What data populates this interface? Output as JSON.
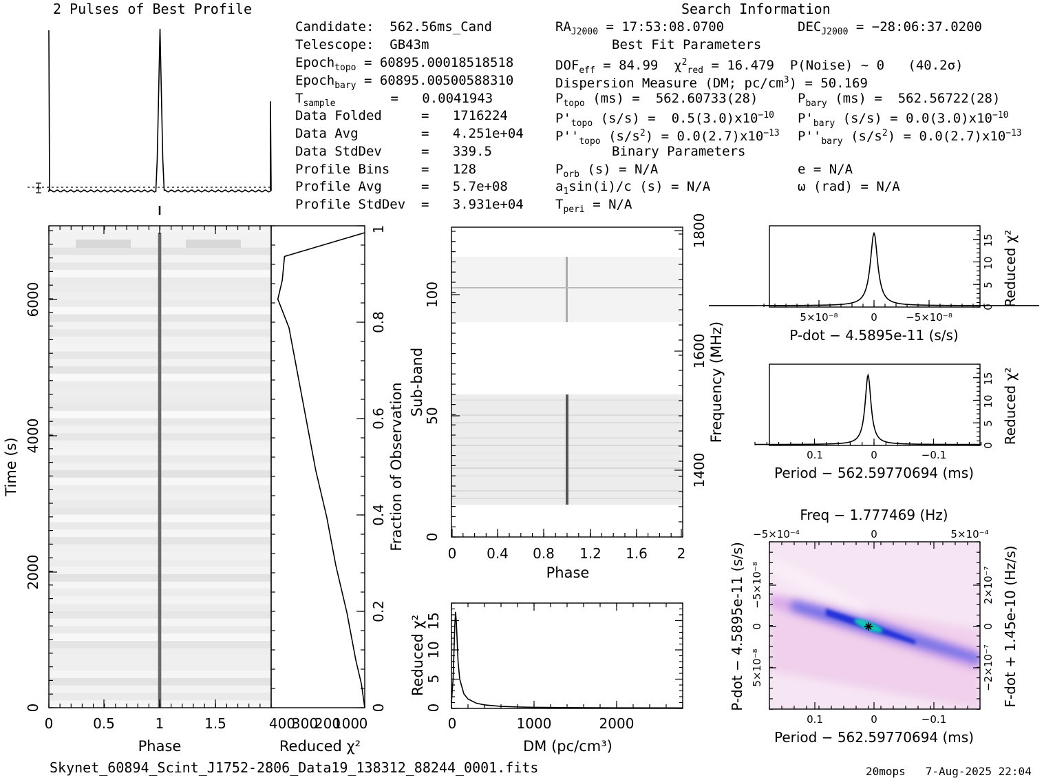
{
  "title_left": "2 Pulses of Best Profile",
  "title_right": "Search Information",
  "footer_file": "Skynet_60894_Scint_J1752-2806_Data19_138312_88244_0001.fits",
  "footer_stamp": "20mops   7-Aug-2025 22:04",
  "info": {
    "candidate": "Candidate:  562.56ms_Cand",
    "telescope": "Telescope:  GB43m",
    "epoch_topo": "= 60895.00018518518",
    "epoch_bary": "= 60895.00500588310",
    "t_sample": "=   0.0041943",
    "data_folded": "Data Folded     =   1716224",
    "data_avg": "Data Avg        =   4.251e+04",
    "data_stddev": "Data StdDev     =   339.5",
    "profile_bins": "Profile Bins    =   128",
    "profile_avg": "Profile Avg     =   5.7e+08",
    "profile_stddev": "Profile StdDev  =   3.931e+04",
    "ra": "= 17:53:08.0700",
    "dec": "= −28:06:37.0200",
    "best_fit": "Best Fit Parameters",
    "dof": "= 84.99",
    "chi_red": "= 16.479",
    "pnoise": "P(Noise) ~ 0   (40.2σ)",
    "dm": "Dispersion Measure (DM; pc/cm",
    "dm_val": ") = 50.169",
    "p_topo": "(ms) =  562.60733(28)",
    "p_bary": "(ms) =  562.56722(28)",
    "pd_topo": "(s/s) =  0.5(3.0)x10",
    "pd_topo_exp": "−10",
    "pd_bary": "(s/s) = 0.0(3.0)x10",
    "pd_bary_exp": "−10",
    "pdd_topo": "(s/s",
    "pdd_topo_rest": ") = 0.0(2.7)x10",
    "pdd_topo_exp": "−13",
    "pdd_bary": "(s/s",
    "pdd_bary_rest": ") = 0.0(2.7)x10",
    "pdd_bary_exp": "−13",
    "binary": "Binary Parameters",
    "porb": "(s) = N/A",
    "a1": "sin(i)/c (s) = N/A",
    "tperi": "= N/A",
    "e": "e = N/A",
    "omega": "ω (rad) = N/A"
  },
  "chart_data": [
    {
      "type": "line",
      "name": "profile",
      "title": "2 Pulses of Best Profile",
      "x": [
        0.0,
        0.5,
        0.98,
        1.0,
        1.02,
        1.5,
        1.98,
        2.0
      ],
      "y": [
        0.02,
        0.02,
        0.05,
        1.0,
        0.05,
        0.02,
        0.05,
        0.56
      ],
      "note_peaks_phase": [
        0.0,
        1.0,
        2.0
      ]
    },
    {
      "type": "heatmap",
      "name": "time-phase",
      "xlabel": "Phase",
      "ylabel": "Time (s)",
      "xlim": [
        0,
        2
      ],
      "ylim": [
        0,
        7050
      ],
      "xticks": [
        "0",
        "0.5",
        "1",
        "1.5"
      ],
      "yticks": [
        "0",
        "2000",
        "4000",
        "6000"
      ],
      "pulse_phase": [
        1.0
      ]
    },
    {
      "type": "line",
      "name": "chi-vs-time",
      "xlabel": "Reduced χ²",
      "ylabel": "Fraction of Observation",
      "xticks": [
        "400",
        "300",
        "200",
        "100",
        "0"
      ],
      "yticks": [
        "0",
        "0.2",
        "0.4",
        "0.6",
        "0.8",
        "1"
      ],
      "y": [
        0.0,
        0.05,
        0.1,
        0.2,
        0.3,
        0.4,
        0.5,
        0.6,
        0.7,
        0.8,
        0.86,
        0.9,
        0.95,
        1.0
      ],
      "x": [
        0,
        15,
        40,
        80,
        130,
        170,
        220,
        260,
        300,
        340,
        390,
        370,
        360,
        0
      ]
    },
    {
      "type": "heatmap",
      "name": "subband-phase",
      "xlabel": "Phase",
      "ylabel": "Sub-band",
      "y2label": "Frequency (MHz)",
      "xticks": [
        "0",
        "0.4",
        "0.8",
        "1.2",
        "1.6",
        "2"
      ],
      "yticks": [
        "0",
        "50",
        "100"
      ],
      "y2ticks": [
        "1400",
        "1600",
        "1800"
      ],
      "xlim": [
        0,
        2
      ],
      "ylim": [
        0,
        128
      ],
      "y2lim": [
        1300,
        1800
      ]
    },
    {
      "type": "line",
      "name": "dm-curve",
      "xlabel": "DM (pc/cm³)",
      "ylabel": "Reduced χ²",
      "xticks": [
        "0",
        "1000",
        "2000"
      ],
      "yticks": [
        "0",
        "5",
        "10",
        "15"
      ],
      "xlim": [
        0,
        2800
      ],
      "ylim": [
        0,
        18
      ],
      "x": [
        0,
        20,
        40,
        50,
        60,
        80,
        100,
        150,
        200,
        300,
        400,
        600,
        800,
        1000,
        1500,
        2000,
        2800
      ],
      "y": [
        1.0,
        5.0,
        14.0,
        16.5,
        14.5,
        8.0,
        5.0,
        2.5,
        1.6,
        0.9,
        0.6,
        0.35,
        0.25,
        0.18,
        0.12,
        0.1,
        0.08
      ]
    },
    {
      "type": "line",
      "name": "pdot-curve",
      "xlabel": "P-dot − 4.5895e-11 (s/s)",
      "ylabel": "Reduced χ²",
      "xticks": [
        "5×10⁻⁸",
        "0",
        "−5×10⁻⁸"
      ],
      "yticks": [
        "0",
        "5",
        "10",
        "15"
      ],
      "xlim": [
        1e-07,
        -1e-07
      ],
      "ylim": [
        0,
        18
      ],
      "x": [
        1e-07,
        5e-08,
        2e-08,
        1e-08,
        5e-09,
        0,
        -5e-09,
        -1e-08,
        -2e-08,
        -5e-08,
        -1e-07
      ],
      "y": [
        0.4,
        0.8,
        1.8,
        3.5,
        7.5,
        16.5,
        7.5,
        3.5,
        1.8,
        0.8,
        0.4
      ]
    },
    {
      "type": "line",
      "name": "period-curve",
      "xlabel": "Period − 562.59770694 (ms)",
      "ylabel": "Reduced χ²",
      "xticks": [
        "0.1",
        "0",
        "−0.1"
      ],
      "yticks": [
        "0",
        "5",
        "10",
        "15"
      ],
      "xlim": [
        0.2,
        -0.18
      ],
      "ylim": [
        0,
        18
      ],
      "x": [
        0.2,
        0.1,
        0.05,
        0.03,
        0.02,
        0.01,
        0.0,
        -0.01,
        -0.03,
        -0.05,
        -0.1,
        -0.18
      ],
      "y": [
        0.2,
        0.5,
        1.2,
        2.5,
        5.0,
        15.5,
        5.0,
        2.0,
        0.9,
        0.5,
        0.25,
        0.15
      ]
    },
    {
      "type": "heatmap",
      "name": "period-pdot-plane",
      "title": "Freq − 1.777469 (Hz)",
      "xlabel": "Period − 562.59770694 (ms)",
      "ylabel": "P-dot − 4.5895e-11 (s/s)",
      "y2label": "F-dot + 1.45e-10 (Hz/s)",
      "xticks": [
        "0.1",
        "0",
        "−0.1"
      ],
      "x2ticks": [
        "−5×10⁻⁴",
        "0",
        "5×10⁻⁴"
      ],
      "yticks": [
        "−5×10⁻⁸",
        "0",
        "5×10⁻⁸"
      ],
      "y2ticks": [
        "2×10⁻⁷",
        "0",
        "−2×10⁻⁷"
      ]
    }
  ]
}
